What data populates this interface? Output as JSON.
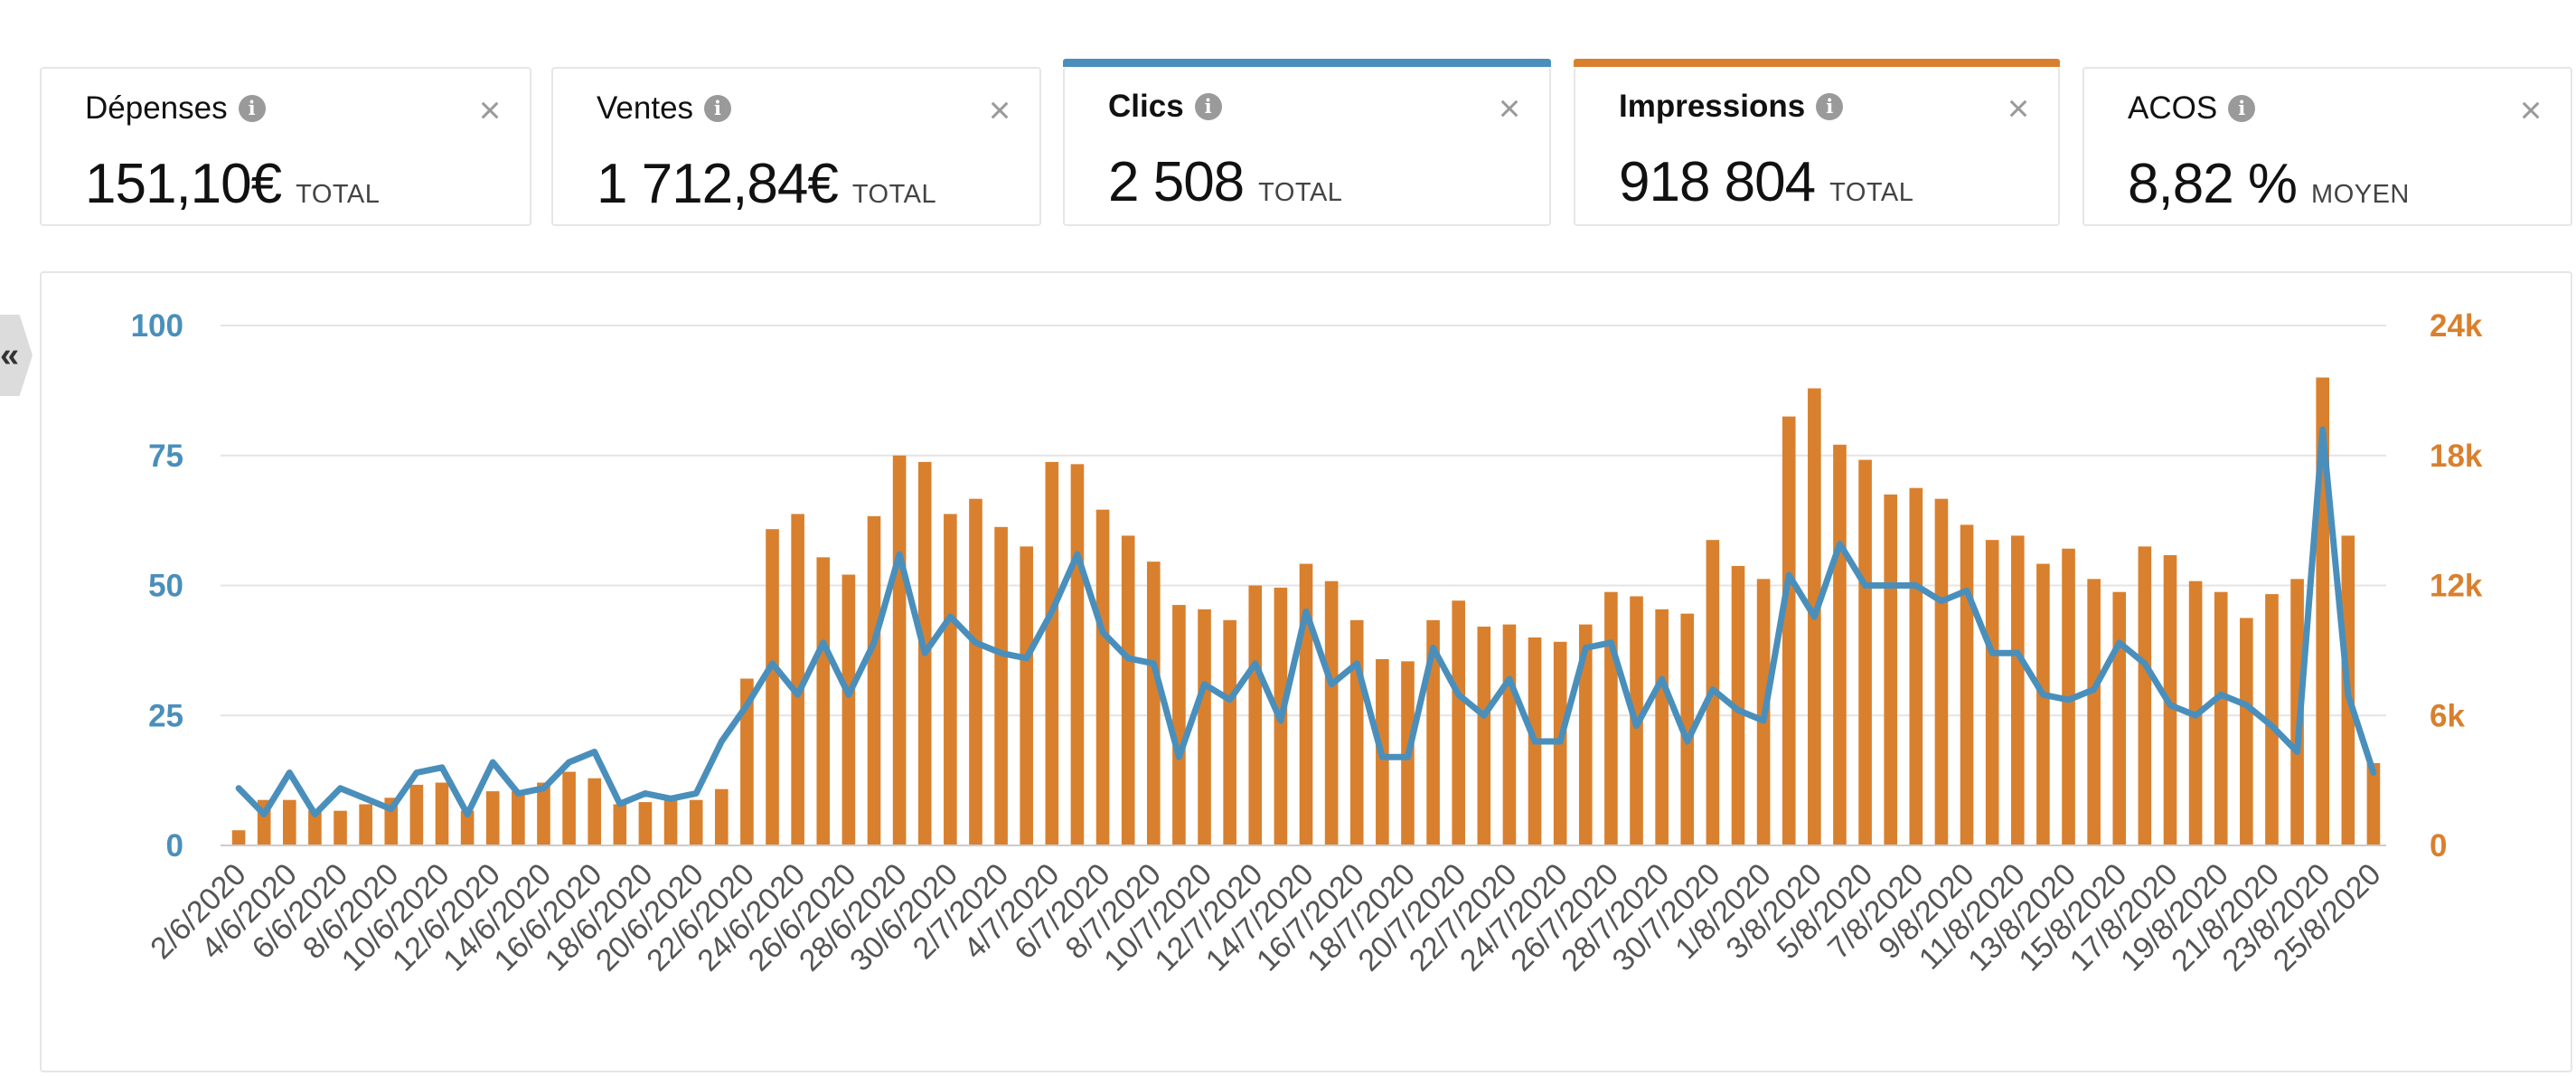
{
  "cards": [
    {
      "title": "Dépenses",
      "value": "151,10€",
      "unit": "TOTAL",
      "bar": ""
    },
    {
      "title": "Ventes",
      "value": "1 712,84€",
      "unit": "TOTAL",
      "bar": ""
    },
    {
      "title": "Clics",
      "value": "2 508",
      "unit": "TOTAL",
      "bar": "#4a8fbb"
    },
    {
      "title": "Impressions",
      "value": "918 804",
      "unit": "TOTAL",
      "bar": "#d9802e"
    },
    {
      "title": "ACOS",
      "value": "8,82 %",
      "unit": "MOYEN",
      "bar": ""
    }
  ],
  "info_glyph": "i",
  "close_glyph": "×",
  "collapse_glyph": "«",
  "chart_data": {
    "type": "bar+line",
    "x_ticks": [
      "2/6/2020",
      "4/6/2020",
      "6/6/2020",
      "8/6/2020",
      "10/6/2020",
      "12/6/2020",
      "14/6/2020",
      "16/6/2020",
      "18/6/2020",
      "20/6/2020",
      "22/6/2020",
      "24/6/2020",
      "26/6/2020",
      "28/6/2020",
      "30/6/2020",
      "2/7/2020",
      "4/7/2020",
      "6/7/2020",
      "8/7/2020",
      "10/7/2020",
      "12/7/2020",
      "14/7/2020",
      "16/7/2020",
      "18/7/2020",
      "20/7/2020",
      "22/7/2020",
      "24/7/2020",
      "26/7/2020",
      "28/7/2020",
      "30/7/2020",
      "1/8/2020",
      "3/8/2020",
      "5/8/2020",
      "7/8/2020",
      "9/8/2020",
      "11/8/2020",
      "13/8/2020",
      "15/8/2020",
      "17/8/2020",
      "19/8/2020",
      "21/8/2020",
      "23/8/2020",
      "25/8/2020"
    ],
    "left_axis": {
      "ticks": [
        "0",
        "25",
        "50",
        "75",
        "100"
      ],
      "ylim": [
        0,
        100
      ],
      "color": "#4a8fbb"
    },
    "right_axis": {
      "ticks": [
        "0",
        "6k",
        "12k",
        "18k",
        "24k"
      ],
      "ylim": [
        0,
        24000
      ],
      "color": "#d9802e"
    },
    "grid": true,
    "series": [
      {
        "name": "Impressions",
        "type": "bar",
        "axis": "right",
        "color": "#d9802e",
        "values": [
          700,
          2100,
          2100,
          1600,
          1600,
          1900,
          2200,
          2800,
          2900,
          1600,
          2500,
          2500,
          2900,
          3400,
          3100,
          1900,
          2000,
          2100,
          2100,
          2600,
          7700,
          14600,
          15300,
          13300,
          12500,
          15200,
          18000,
          17700,
          15300,
          16000,
          14700,
          13800,
          17700,
          17600,
          15500,
          14300,
          13100,
          11100,
          10900,
          10400,
          12000,
          11900,
          13000,
          12200,
          10400,
          8600,
          8500,
          10400,
          11300,
          10100,
          10200,
          9600,
          9400,
          10200,
          11700,
          11500,
          10900,
          10700,
          14100,
          12900,
          12300,
          19800,
          21100,
          18500,
          17800,
          16200,
          16500,
          16000,
          14800,
          14100,
          14300,
          13000,
          13700,
          12300,
          11700,
          13800,
          13400,
          12200,
          11700,
          10500,
          11600,
          12300,
          21600,
          14300,
          3800
        ]
      },
      {
        "name": "Clics",
        "type": "line",
        "axis": "left",
        "color": "#4a8fbb",
        "values": [
          11,
          6,
          14,
          6,
          11,
          9,
          7,
          14,
          15,
          6,
          16,
          10,
          11,
          16,
          18,
          8,
          10,
          9,
          10,
          20,
          27,
          35,
          29,
          39,
          29,
          39,
          56,
          37,
          44,
          39,
          37,
          36,
          45,
          56,
          41,
          36,
          35,
          17,
          31,
          28,
          35,
          24,
          45,
          31,
          35,
          17,
          17,
          38,
          29,
          25,
          32,
          20,
          20,
          38,
          39,
          23,
          32,
          20,
          30,
          26,
          24,
          52,
          44,
          58,
          50,
          50,
          50,
          47,
          49,
          37,
          37,
          29,
          28,
          30,
          39,
          35,
          27,
          25,
          29,
          27,
          23,
          18,
          80,
          29,
          14
        ]
      }
    ]
  }
}
